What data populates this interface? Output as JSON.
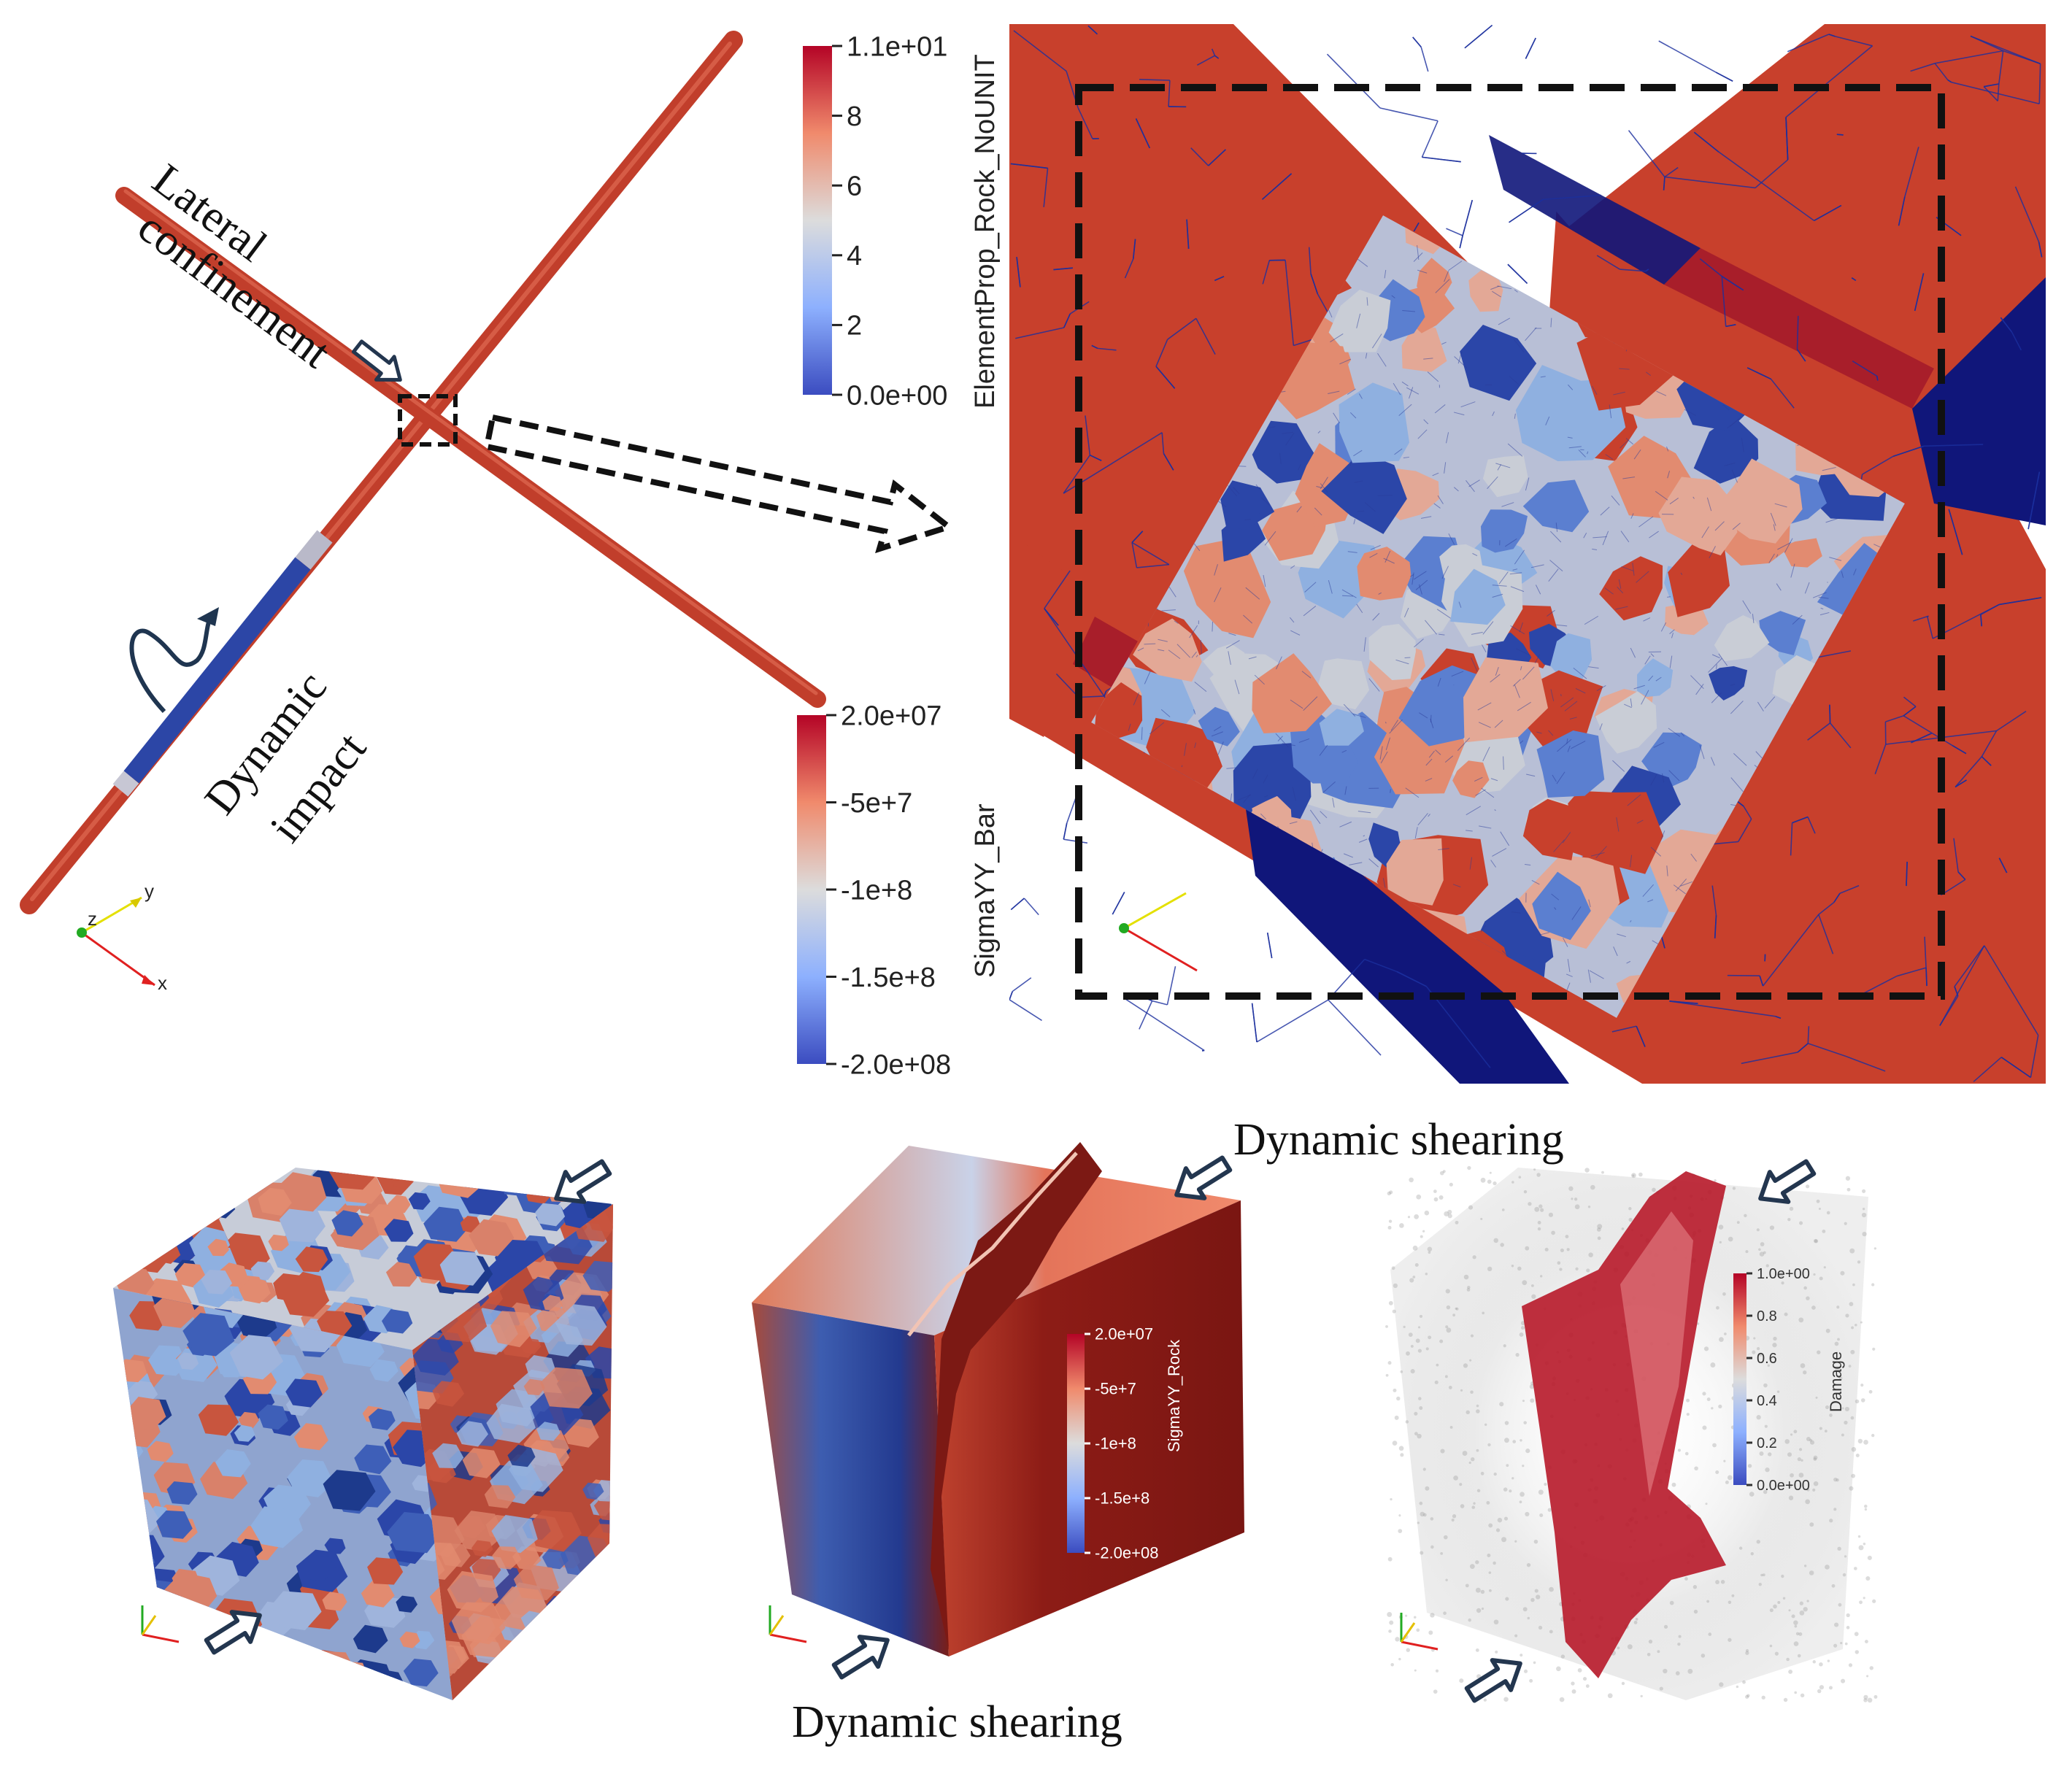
{
  "annotations": {
    "lateral_line1": "Lateral",
    "lateral_line2": "confinement",
    "dynamic_line1": "Dynamic",
    "dynamic_line2": "impact",
    "shearing_top": "Dynamic shearing",
    "shearing_bottom": "Dynamic shearing"
  },
  "colorbars": {
    "element_prop": {
      "title": "ElementProp_Rock_NoUNIT",
      "ticks": [
        "1.1e+01",
        "8",
        "6",
        "4",
        "2",
        "0.0e+00"
      ]
    },
    "sigma_bar": {
      "title": "SigmaYY_Bar",
      "ticks": [
        "2.0e+07",
        "-5e+7",
        "-1e+8",
        "-1.5e+8",
        "-2.0e+08"
      ]
    },
    "sigma_rock": {
      "title": "SigmaYY_Rock",
      "ticks": [
        "2.0e+07",
        "-5e+7",
        "-1e+8",
        "-1.5e+8",
        "-2.0e+08"
      ]
    },
    "damage": {
      "title": "Damage",
      "ticks": [
        "1.0e+00",
        "0.8",
        "0.6",
        "0.4",
        "0.2",
        "0.0e+00"
      ]
    }
  },
  "axes": {
    "x": "x",
    "y": "y",
    "z": "z"
  },
  "colors": {
    "red": "#c8402c",
    "dark_red": "#a81e22",
    "blue": "#2b46a8",
    "navy": "#0d1a8a",
    "light_blue": "#8fb0e0",
    "salmon": "#e28b70",
    "grey": "#c9cdd6",
    "mesh_line": "#1b2f9e"
  }
}
